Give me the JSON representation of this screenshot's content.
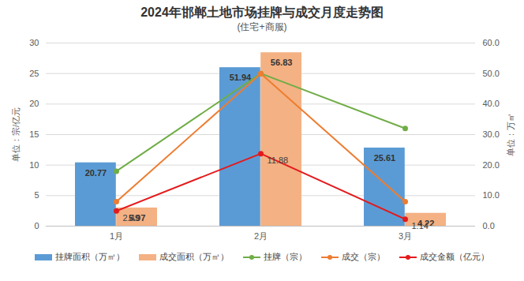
{
  "chart_data": {
    "type": "bar",
    "title": "2024年邯郸土地市场挂牌与成交月度走势图",
    "subtitle": "(住宅+商服)",
    "categories": [
      "1月",
      "2月",
      "3月"
    ],
    "ylabel": "单位：宗/亿元",
    "y2label": "单位：万㎡",
    "ylim": [
      0,
      30
    ],
    "yticks": [
      0,
      5,
      10,
      15,
      20,
      25,
      30
    ],
    "y2lim": [
      0,
      60
    ],
    "y2ticks": [
      {
        "value": 0,
        "label": "0.0"
      },
      {
        "value": 10,
        "label": "10.0"
      },
      {
        "value": 20,
        "label": "20.0"
      },
      {
        "value": 30,
        "label": "30.0"
      },
      {
        "value": 40,
        "label": "40.0"
      },
      {
        "value": 50,
        "label": "50.0"
      },
      {
        "value": 60,
        "label": "60.0"
      }
    ],
    "grid": true,
    "legend": "bottom",
    "series": [
      {
        "name": "挂牌面积（万㎡）",
        "type": "bar",
        "axis": "y2",
        "color": "#5b9bd5",
        "values": [
          20.77,
          51.94,
          25.61
        ],
        "data_labels": true
      },
      {
        "name": "成交面积（万㎡）",
        "type": "bar",
        "axis": "y2",
        "color": "#f4b183",
        "values": [
          5.97,
          56.83,
          4.22
        ],
        "data_labels": true
      },
      {
        "name": "挂牌（宗）",
        "type": "line",
        "color": "#70ad47",
        "marker": "circle",
        "line_style": "solid",
        "values": [
          9,
          25,
          16
        ],
        "data_labels": false
      },
      {
        "name": "成交（宗）",
        "type": "line",
        "color": "#ed7d31",
        "marker": "circle",
        "line_style": "solid",
        "values": [
          4,
          25,
          4
        ],
        "data_labels": false
      },
      {
        "name": "成交金额（亿元）",
        "type": "line",
        "color": "#e31a1c",
        "marker": "circle",
        "line_style": "solid",
        "values": [
          2.49,
          11.88,
          1.14
        ],
        "data_labels": true
      }
    ]
  }
}
